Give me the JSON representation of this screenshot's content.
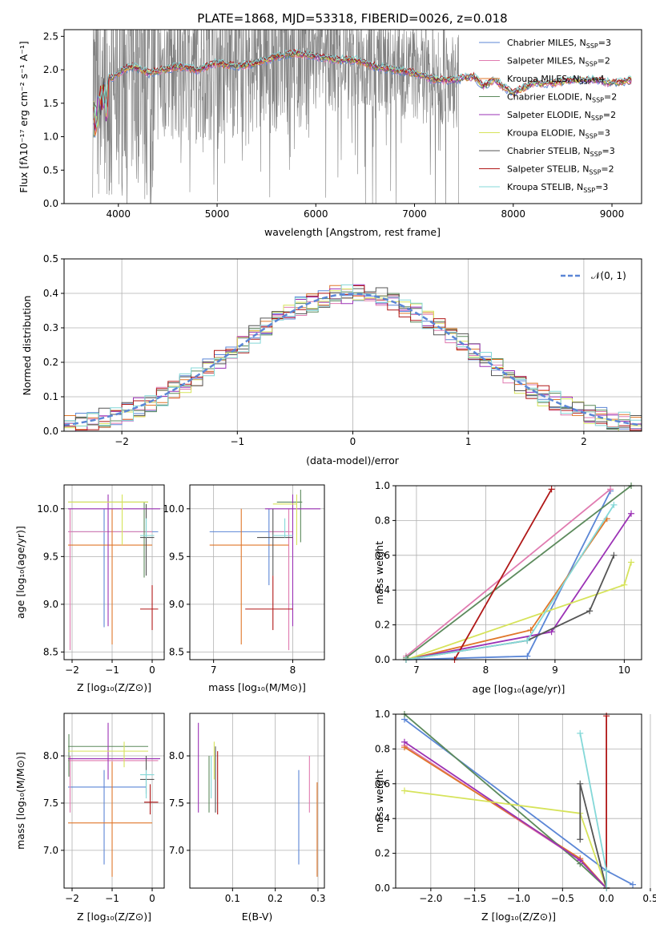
{
  "colors": {
    "Chabrier MILES": "#5b86d6",
    "Salpeter MILES": "#e07bb0",
    "Kroupa MILES": "#e0772a",
    "Chabrier ELODIE": "#5c8a5c",
    "Salpeter ELODIE": "#9b31b5",
    "Kroupa ELODIE": "#d6e35a",
    "Chabrier STELIB": "#555555",
    "Salpeter STELIB": "#b01818",
    "Kroupa STELIB": "#84d8d8",
    "observed": "#808080",
    "normal": "#5b86d6"
  },
  "chart_data": [
    {
      "type": "line",
      "title": "PLATE=1868, MJD=53318, FIBERID=0026, z=0.018",
      "xlabel": "wavelength [Angstrom, rest frame]",
      "ylabel": "Flux [fλ10⁻¹⁷ erg cm⁻² s⁻¹ A⁻¹]",
      "xlim": [
        3450,
        9300
      ],
      "ylim": [
        0,
        2.6
      ],
      "xticks": [
        "4000",
        "5000",
        "6000",
        "7000",
        "8000",
        "9000"
      ],
      "yticks": [
        "0.0",
        "0.5",
        "1.0",
        "1.5",
        "2.0",
        "2.5"
      ],
      "legend": "top-right",
      "continuum": [
        [
          3750,
          1.55
        ],
        [
          3850,
          1.85
        ],
        [
          3950,
          1.9
        ],
        [
          4050,
          2.0
        ],
        [
          4150,
          2.05
        ],
        [
          4300,
          1.95
        ],
        [
          4450,
          2.0
        ],
        [
          4600,
          2.05
        ],
        [
          4800,
          2.0
        ],
        [
          5000,
          2.1
        ],
        [
          5200,
          2.05
        ],
        [
          5400,
          2.1
        ],
        [
          5600,
          2.2
        ],
        [
          5800,
          2.25
        ],
        [
          6000,
          2.2
        ],
        [
          6200,
          2.15
        ],
        [
          6400,
          2.15
        ],
        [
          6600,
          2.05
        ],
        [
          6800,
          2.0
        ],
        [
          7000,
          1.95
        ],
        [
          7200,
          1.85
        ],
        [
          7400,
          1.85
        ],
        [
          7600,
          1.9
        ],
        [
          7700,
          1.75
        ],
        [
          7800,
          1.85
        ],
        [
          8000,
          1.65
        ],
        [
          8200,
          1.8
        ],
        [
          8400,
          1.8
        ],
        [
          8600,
          1.85
        ],
        [
          8800,
          1.85
        ],
        [
          9000,
          1.8
        ],
        [
          9200,
          1.85
        ]
      ],
      "observed_range": [
        3740,
        7450
      ],
      "series": [
        {
          "name": "Chabrier MILES, N",
          "nssp": "3"
        },
        {
          "name": "Salpeter MILES, N",
          "nssp": "2"
        },
        {
          "name": "Kroupa MILES, N",
          "nssp": "4"
        },
        {
          "name": "Chabrier ELODIE, N",
          "nssp": "2"
        },
        {
          "name": "Salpeter ELODIE, N",
          "nssp": "2"
        },
        {
          "name": "Kroupa ELODIE, N",
          "nssp": "3"
        },
        {
          "name": "Chabrier STELIB, N",
          "nssp": "3"
        },
        {
          "name": "Salpeter STELIB, N",
          "nssp": "2"
        },
        {
          "name": "Kroupa STELIB, N",
          "nssp": "3"
        }
      ],
      "nssp_sub": "SSP"
    },
    {
      "type": "bar",
      "xlabel": "(data-model)/error",
      "ylabel": "Normed distribution",
      "xlim": [
        -2.5,
        2.5
      ],
      "ylim": [
        0,
        0.5
      ],
      "xticks": [
        "−2",
        "−1",
        "0",
        "1",
        "2"
      ],
      "yticks": [
        "0.0",
        "0.1",
        "0.2",
        "0.3",
        "0.4",
        "0.5"
      ],
      "legend_label": "𝒩(0, 1)",
      "legend": "top-right",
      "grid": true,
      "bin_width": 0.1,
      "bin_start": -2.5
    },
    {
      "type": "scatter",
      "xlabel": "Z [log₁₀(Z/Z⊙)]",
      "ylabel": "age  [log₁₀(age/yr)]",
      "xlim": [
        -2.2,
        0.3
      ],
      "ylim": [
        8.42,
        10.25
      ],
      "xticks": [
        "−2",
        "−1",
        "0"
      ],
      "yticks": [
        "8.5",
        "9.0",
        "9.5",
        "10.0"
      ],
      "grid": true
    },
    {
      "type": "scatter",
      "xlabel": "mass [log₁₀(M/M⊙)]",
      "ylabel": "",
      "xlim": [
        6.7,
        8.4
      ],
      "ylim": [
        8.42,
        10.25
      ],
      "xticks": [
        "7",
        "8"
      ],
      "yticks": [
        "8.5",
        "9.0",
        "9.5",
        "10.0"
      ],
      "grid": true
    },
    {
      "type": "line",
      "xlabel": "age  [log₁₀(age/yr)]",
      "ylabel": "mass weight",
      "xlim": [
        6.7,
        10.25
      ],
      "ylim": [
        0,
        1
      ],
      "xticks": [
        "7",
        "8",
        "9",
        "10"
      ],
      "yticks": [
        "0.0",
        "0.2",
        "0.4",
        "0.6",
        "0.8",
        "1.0"
      ],
      "grid": true,
      "series": [
        {
          "name": "Chabrier MILES",
          "points": [
            [
              6.85,
              0.0
            ],
            [
              8.6,
              0.02
            ],
            [
              9.8,
              0.97
            ]
          ]
        },
        {
          "name": "Salpeter MILES",
          "points": [
            [
              6.85,
              0.02
            ],
            [
              9.8,
              0.98
            ]
          ]
        },
        {
          "name": "Kroupa MILES",
          "points": [
            [
              6.85,
              0.0
            ],
            [
              8.65,
              0.17
            ],
            [
              9.75,
              0.81
            ]
          ]
        },
        {
          "name": "Chabrier ELODIE",
          "points": [
            [
              6.85,
              0.01
            ],
            [
              10.1,
              1.0
            ]
          ]
        },
        {
          "name": "Salpeter ELODIE",
          "points": [
            [
              6.85,
              0.0
            ],
            [
              8.95,
              0.16
            ],
            [
              10.1,
              0.84
            ]
          ]
        },
        {
          "name": "Kroupa ELODIE",
          "points": [
            [
              6.85,
              0.0
            ],
            [
              10.0,
              0.43
            ],
            [
              10.1,
              0.56
            ]
          ]
        },
        {
          "name": "Chabrier STELIB",
          "points": [
            [
              6.85,
              0.0
            ],
            [
              8.6,
              0.11
            ],
            [
              9.5,
              0.28
            ],
            [
              9.85,
              0.6
            ]
          ]
        },
        {
          "name": "Salpeter STELIB",
          "points": [
            [
              7.55,
              0.0
            ],
            [
              8.95,
              0.98
            ]
          ]
        },
        {
          "name": "Kroupa STELIB",
          "points": [
            [
              6.85,
              0.0
            ],
            [
              8.6,
              0.11
            ],
            [
              9.85,
              0.89
            ]
          ]
        }
      ]
    },
    {
      "type": "scatter",
      "xlabel": "Z [log₁₀(Z/Z⊙)]",
      "ylabel": "mass [log₁₀(M/M⊙)]",
      "xlim": [
        -2.2,
        0.3
      ],
      "ylim": [
        6.6,
        8.45
      ],
      "xticks": [
        "−2",
        "−1",
        "0"
      ],
      "yticks": [
        "7.0",
        "7.5",
        "8.0"
      ],
      "grid": true
    },
    {
      "type": "scatter",
      "xlabel": "E(B-V)",
      "ylabel": "",
      "xlim": [
        0,
        0.315
      ],
      "ylim": [
        6.6,
        8.45
      ],
      "xticks": [
        "0.1",
        "0.2",
        "0.3"
      ],
      "yticks": [
        "7.0",
        "7.5",
        "8.0"
      ],
      "grid": true
    },
    {
      "type": "line",
      "xlabel": "Z [log₁₀(Z/Z⊙)]",
      "ylabel": "mass weight",
      "xlim": [
        -2.4,
        0.4
      ],
      "ylim": [
        0,
        1
      ],
      "xticks": [
        "−2.0",
        "−1.5",
        "−1.0",
        "−0.5",
        "0.0",
        "0.5"
      ],
      "yticks": [
        "0.0",
        "0.2",
        "0.4",
        "0.6",
        "0.8",
        "1.0"
      ],
      "grid": true,
      "series": [
        {
          "name": "Chabrier MILES",
          "points": [
            [
              -2.3,
              0.97
            ],
            [
              0.0,
              0.1
            ],
            [
              0.3,
              0.02
            ]
          ]
        },
        {
          "name": "Salpeter MILES",
          "points": [
            [
              -2.3,
              0.82
            ],
            [
              -0.3,
              0.16
            ],
            [
              0.0,
              0.0
            ]
          ]
        },
        {
          "name": "Kroupa MILES",
          "points": [
            [
              -2.3,
              0.81
            ],
            [
              -0.3,
              0.17
            ],
            [
              0.0,
              0.0
            ]
          ]
        },
        {
          "name": "Chabrier ELODIE",
          "points": [
            [
              -2.3,
              1.0
            ],
            [
              -0.3,
              0.14
            ],
            [
              0.0,
              0.0
            ]
          ]
        },
        {
          "name": "Salpeter ELODIE",
          "points": [
            [
              -2.3,
              0.84
            ],
            [
              -0.3,
              0.16
            ],
            [
              0.0,
              0.0
            ]
          ]
        },
        {
          "name": "Kroupa ELODIE",
          "points": [
            [
              -2.3,
              0.56
            ],
            [
              -0.3,
              0.43
            ],
            [
              0.0,
              0.0
            ]
          ]
        },
        {
          "name": "Chabrier STELIB",
          "points": [
            [
              -0.3,
              0.28
            ],
            [
              -0.3,
              0.6
            ],
            [
              0.0,
              0.0
            ]
          ]
        },
        {
          "name": "Salpeter STELIB",
          "points": [
            [
              0.0,
              0.99
            ],
            [
              0.0,
              0.0
            ]
          ]
        },
        {
          "name": "Kroupa STELIB",
          "points": [
            [
              -0.3,
              0.89
            ],
            [
              0.0,
              0.1
            ],
            [
              0.0,
              0.0
            ]
          ]
        }
      ]
    }
  ]
}
